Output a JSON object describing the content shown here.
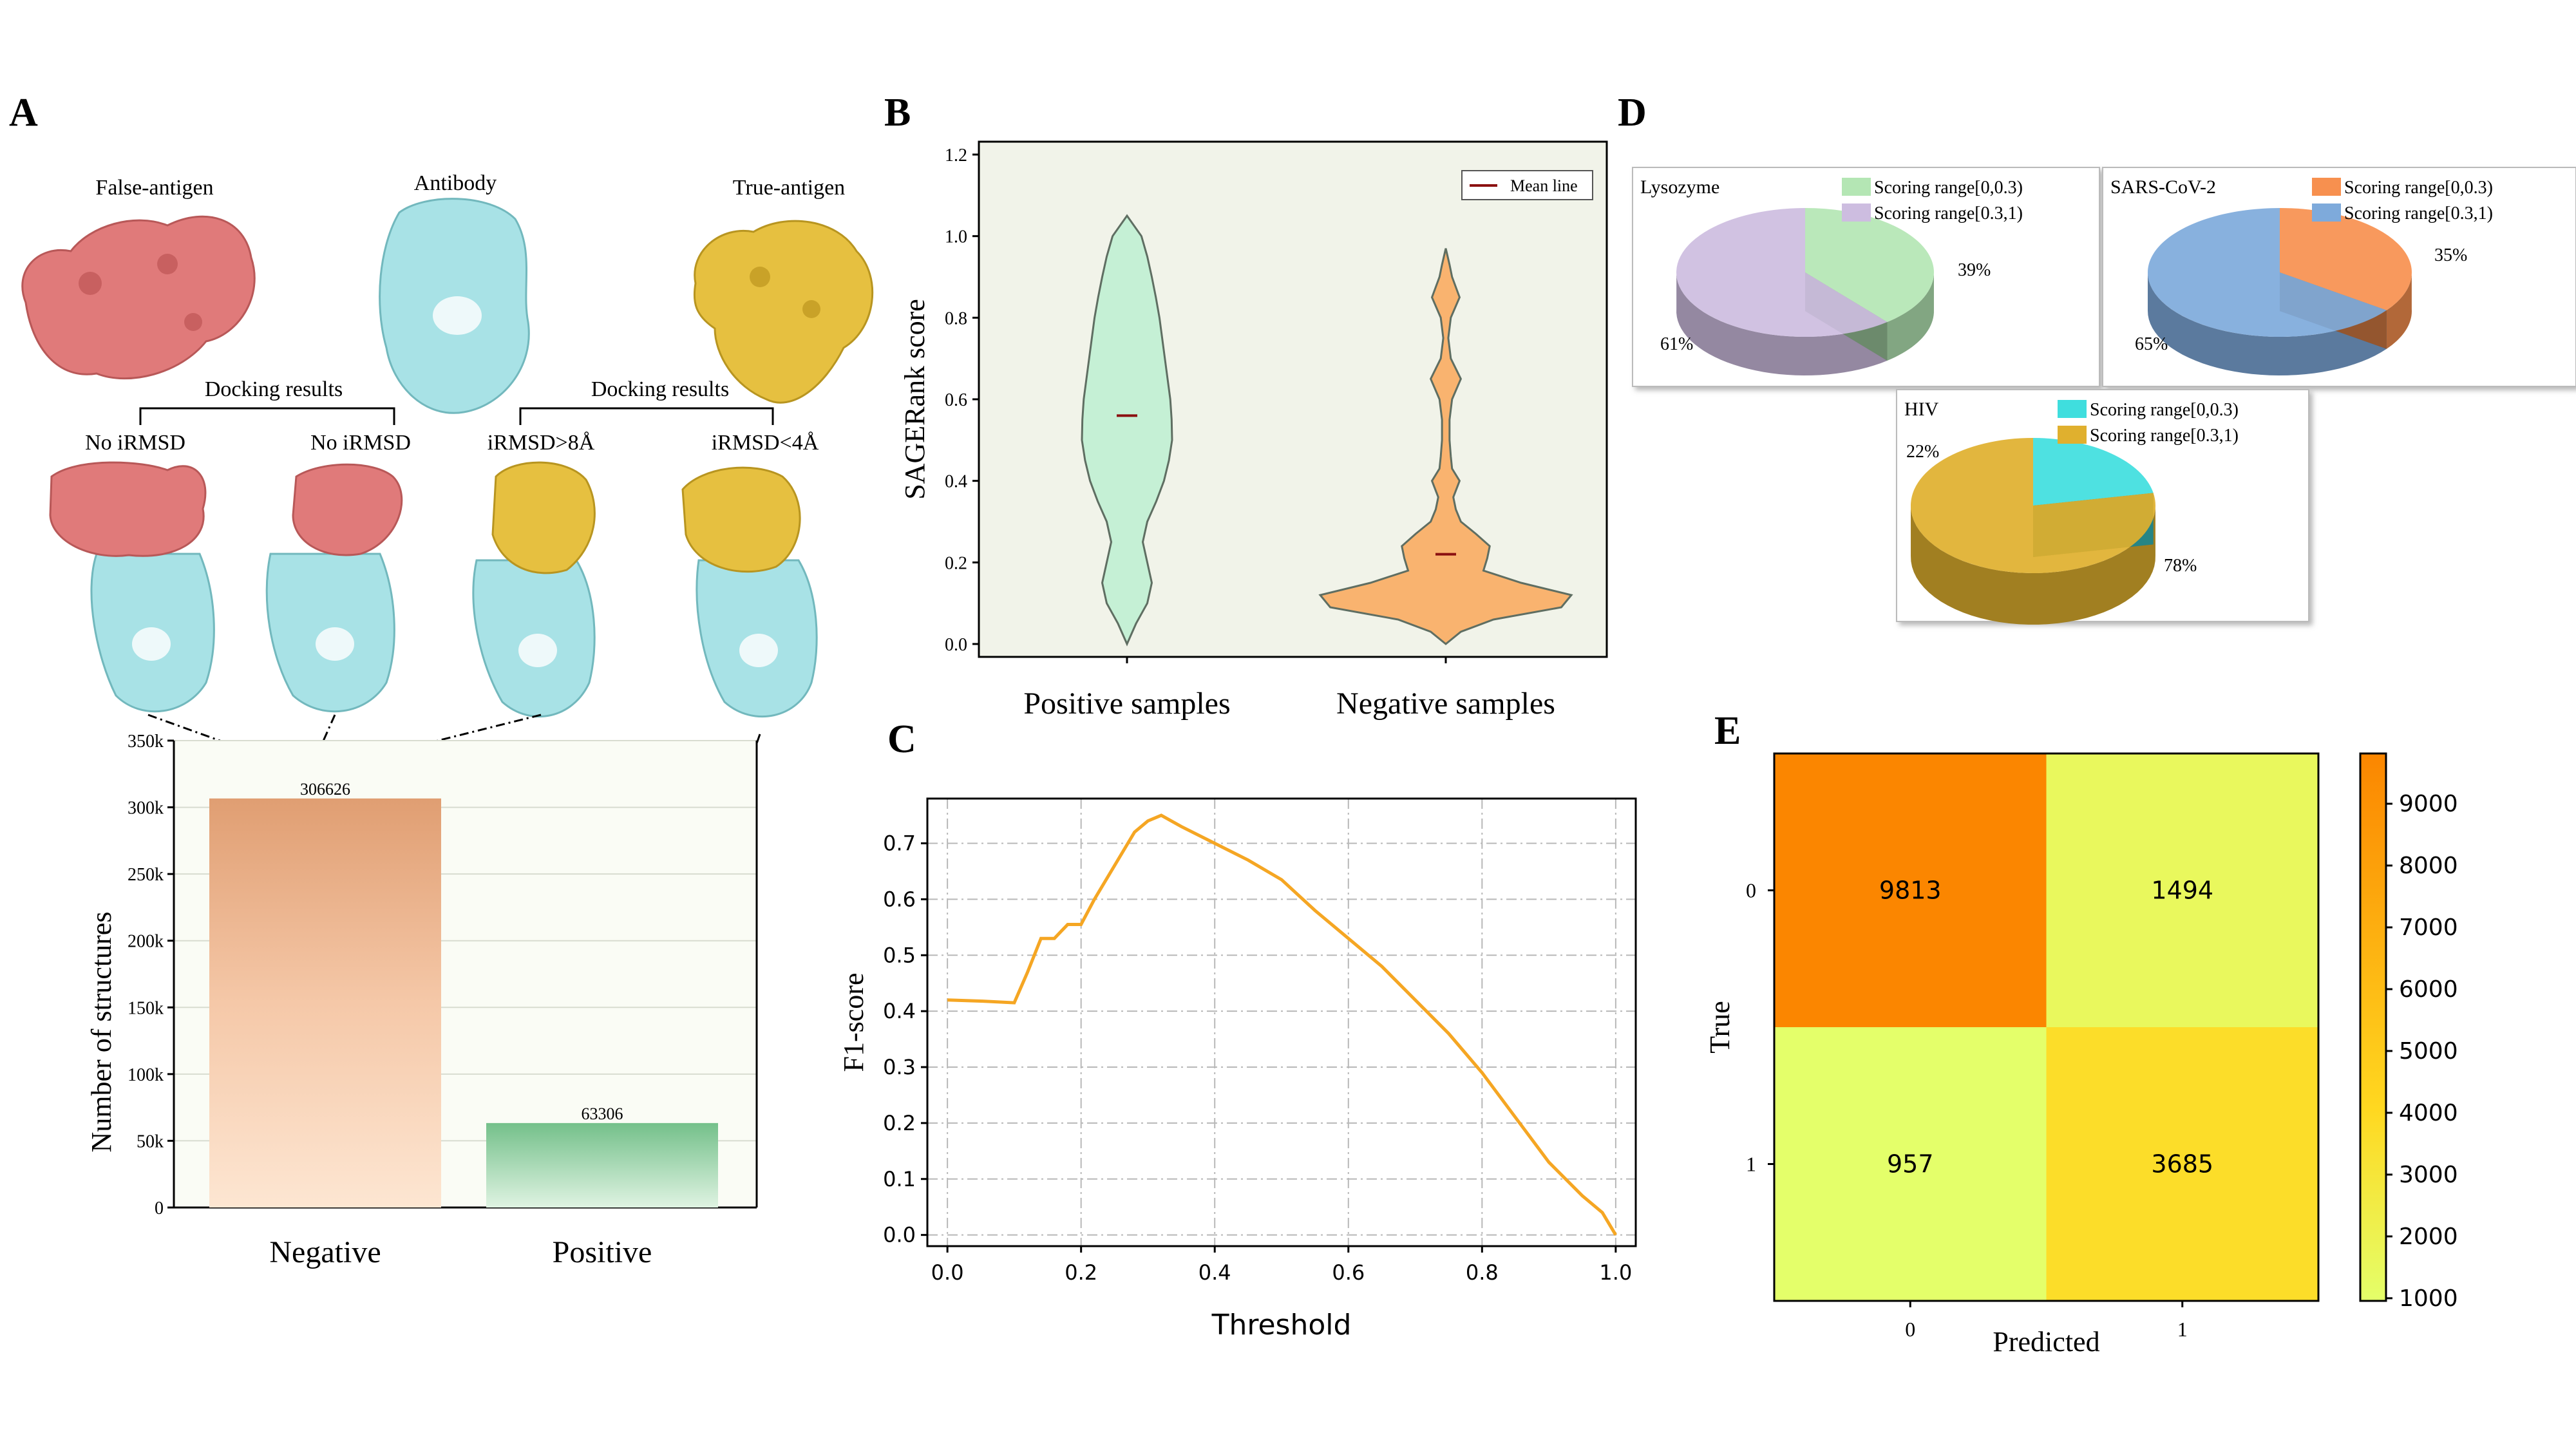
{
  "panels": {
    "A": {
      "letter": "A",
      "structures": {
        "false_antigen": "False-antigen",
        "antibody": "Antibody",
        "true_antigen": "True-antigen",
        "docking_left": "Docking results",
        "docking_right": "Docking results",
        "complex_labels": [
          "No iRMSD",
          "No iRMSD",
          "iRMSD>8Å",
          "iRMSD<4Å"
        ]
      },
      "colors": {
        "false_antigen": "#e07a7a",
        "antibody": "#a8e2e6",
        "true_antigen": "#e6c040"
      }
    },
    "B": {
      "letter": "B"
    },
    "C": {
      "letter": "C"
    },
    "D": {
      "letter": "D"
    },
    "E": {
      "letter": "E"
    }
  },
  "chart_data": [
    {
      "id": "A-bar",
      "type": "bar",
      "categories": [
        "Negative",
        "Positive"
      ],
      "values": [
        306626,
        63306
      ],
      "data_labels": [
        "306626",
        "63306"
      ],
      "ylabel": "Number of structures",
      "ylim": [
        0,
        350000
      ],
      "yticks": [
        0,
        50000,
        100000,
        150000,
        200000,
        250000,
        300000,
        350000
      ],
      "ytick_labels": [
        "0",
        "50k",
        "100k",
        "150k",
        "200k",
        "250k",
        "300k",
        "350k"
      ],
      "colors": {
        "Negative": "#e8a67a",
        "Positive": "#78c48e"
      },
      "grid": true
    },
    {
      "id": "B-violin",
      "type": "violin",
      "categories": [
        "Positive samples",
        "Negative samples"
      ],
      "ylabel": "SAGERank score",
      "ylim": [
        0.0,
        1.2
      ],
      "yticks": [
        0.0,
        0.2,
        0.4,
        0.6,
        0.8,
        1.0,
        1.2
      ],
      "ytick_labels": [
        "0.0",
        "0.2",
        "0.4",
        "0.6",
        "0.8",
        "1.0",
        "1.2"
      ],
      "legend": {
        "label": "Mean line",
        "position": "top-right"
      },
      "means": [
        0.56,
        0.22
      ],
      "colors": [
        "#c5f0d5",
        "#f9b36f"
      ],
      "density": [
        {
          "y": [
            0.0,
            0.05,
            0.1,
            0.15,
            0.2,
            0.25,
            0.3,
            0.35,
            0.4,
            0.45,
            0.5,
            0.55,
            0.6,
            0.65,
            0.7,
            0.75,
            0.8,
            0.85,
            0.9,
            0.95,
            1.0,
            1.05
          ],
          "w": [
            0.0,
            0.2,
            0.45,
            0.55,
            0.45,
            0.35,
            0.45,
            0.65,
            0.82,
            0.93,
            1.0,
            0.99,
            0.96,
            0.9,
            0.84,
            0.78,
            0.72,
            0.64,
            0.55,
            0.45,
            0.32,
            0.0
          ]
        },
        {
          "y": [
            0.0,
            0.03,
            0.06,
            0.09,
            0.12,
            0.15,
            0.18,
            0.21,
            0.24,
            0.27,
            0.3,
            0.33,
            0.36,
            0.4,
            0.43,
            0.46,
            0.5,
            0.55,
            0.6,
            0.65,
            0.7,
            0.75,
            0.8,
            0.85,
            0.9,
            0.93,
            0.97
          ],
          "w": [
            0.0,
            0.12,
            0.38,
            0.92,
            1.0,
            0.6,
            0.3,
            0.33,
            0.35,
            0.24,
            0.12,
            0.08,
            0.06,
            0.11,
            0.05,
            0.04,
            0.03,
            0.03,
            0.05,
            0.12,
            0.04,
            0.02,
            0.04,
            0.11,
            0.05,
            0.03,
            0.0
          ]
        }
      ]
    },
    {
      "id": "C-line",
      "type": "line",
      "xlabel": "Threshold",
      "ylabel": "F1-score",
      "xlim": [
        -0.03,
        1.03
      ],
      "ylim": [
        -0.02,
        0.78
      ],
      "xticks": [
        0.0,
        0.2,
        0.4,
        0.6,
        0.8,
        1.0
      ],
      "xtick_labels": [
        "0.0",
        "0.2",
        "0.4",
        "0.6",
        "0.8",
        "1.0"
      ],
      "yticks": [
        0.0,
        0.1,
        0.2,
        0.3,
        0.4,
        0.5,
        0.6,
        0.7
      ],
      "ytick_labels": [
        "0.0",
        "0.1",
        "0.2",
        "0.3",
        "0.4",
        "0.5",
        "0.6",
        "0.7"
      ],
      "grid": true,
      "color": "#f5a623",
      "x": [
        0.0,
        0.05,
        0.1,
        0.12,
        0.14,
        0.16,
        0.18,
        0.2,
        0.22,
        0.25,
        0.28,
        0.3,
        0.32,
        0.35,
        0.4,
        0.45,
        0.5,
        0.55,
        0.6,
        0.65,
        0.7,
        0.75,
        0.8,
        0.85,
        0.9,
        0.95,
        0.98,
        1.0
      ],
      "y": [
        0.42,
        0.418,
        0.415,
        0.47,
        0.53,
        0.53,
        0.555,
        0.555,
        0.6,
        0.66,
        0.72,
        0.74,
        0.75,
        0.73,
        0.7,
        0.67,
        0.635,
        0.58,
        0.53,
        0.48,
        0.42,
        0.36,
        0.29,
        0.21,
        0.13,
        0.07,
        0.04,
        0.0
      ]
    },
    {
      "id": "D-pie-lysozyme",
      "type": "pie",
      "title": "Lysozyme",
      "labels": [
        "Scoring range[0,0.3)",
        "Scoring range[0.3,1)"
      ],
      "values": [
        39,
        61
      ],
      "value_labels": [
        "39%",
        "61%"
      ],
      "colors": [
        "#b4e6b4",
        "#cdbde0"
      ]
    },
    {
      "id": "D-pie-sars",
      "type": "pie",
      "title": "SARS-CoV-2",
      "labels": [
        "Scoring range[0,0.3)",
        "Scoring range[0.3,1)"
      ],
      "values": [
        35,
        65
      ],
      "value_labels": [
        "35%",
        "65%"
      ],
      "colors": [
        "#f7904f",
        "#7eaadb"
      ]
    },
    {
      "id": "D-pie-hiv",
      "type": "pie",
      "title": "HIV",
      "labels": [
        "Scoring range[0,0.3)",
        "Scoring range[0.3,1)"
      ],
      "values": [
        22,
        78
      ],
      "value_labels": [
        "22%",
        "78%"
      ],
      "colors": [
        "#3fdede",
        "#e0b02e"
      ]
    },
    {
      "id": "E-heatmap",
      "type": "heatmap",
      "xlabel": "Predicted",
      "ylabel": "True",
      "xtick_labels": [
        "0",
        "1"
      ],
      "ytick_labels": [
        "0",
        "1"
      ],
      "matrix": [
        [
          9813,
          1494
        ],
        [
          957,
          3685
        ]
      ],
      "cell_labels": [
        [
          "9813",
          "1494"
        ],
        [
          "957",
          "3685"
        ]
      ],
      "colorbar": {
        "range": [
          957,
          9813
        ],
        "ticks": [
          1000,
          2000,
          3000,
          4000,
          5000,
          6000,
          7000,
          8000,
          9000
        ],
        "tick_labels": [
          "1000",
          "2000",
          "3000",
          "4000",
          "5000",
          "6000",
          "7000",
          "8000",
          "9000"
        ],
        "colors": [
          "#e4ff6a",
          "#ffd820",
          "#fb8600"
        ]
      }
    }
  ]
}
